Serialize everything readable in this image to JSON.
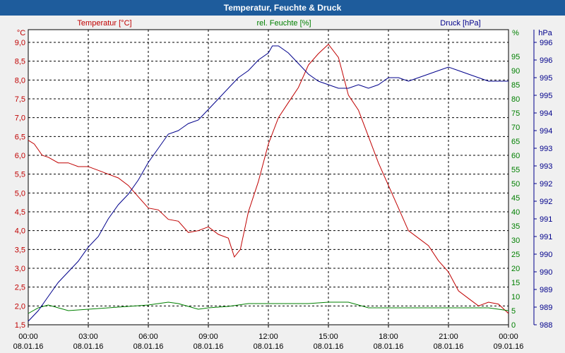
{
  "window": {
    "title": "Temperatur, Feuchte & Druck"
  },
  "chart_data": {
    "type": "line",
    "title": "Temperatur, Feuchte & Druck",
    "grid": true,
    "x_unit": "hours since 08.01.16 00:00",
    "xlim": [
      0,
      24
    ],
    "x_ticks": [
      {
        "x": 0,
        "time": "00:00",
        "date": "08.01.16"
      },
      {
        "x": 3,
        "time": "03:00",
        "date": "08.01.16"
      },
      {
        "x": 6,
        "time": "06:00",
        "date": "08.01.16"
      },
      {
        "x": 9,
        "time": "09:00",
        "date": "08.01.16"
      },
      {
        "x": 12,
        "time": "12:00",
        "date": "08.01.16"
      },
      {
        "x": 15,
        "time": "15:00",
        "date": "08.01.16"
      },
      {
        "x": 18,
        "time": "18:00",
        "date": "08.01.16"
      },
      {
        "x": 21,
        "time": "21:00",
        "date": "08.01.16"
      },
      {
        "x": 24,
        "time": "00:00",
        "date": "09.01.16"
      }
    ],
    "axes": {
      "temperature": {
        "label": "Temperatur [°C]",
        "unit": "°C",
        "color": "#c00000",
        "ylim": [
          1.5,
          9.0
        ],
        "ticks": [
          9.0,
          8.5,
          8.0,
          7.5,
          7.0,
          6.5,
          6.0,
          5.5,
          5.0,
          4.5,
          4.0,
          3.5,
          3.0,
          2.5,
          2.0,
          1.5
        ],
        "tick_labels": [
          "9,0",
          "8,5",
          "8,0",
          "7,5",
          "7,0",
          "6,5",
          "6,0",
          "5,5",
          "5,0",
          "4,5",
          "4,0",
          "3,5",
          "3,0",
          "2,5",
          "2,0",
          "1,5"
        ]
      },
      "humidity": {
        "label": "rel. Feuchte [%]",
        "unit": "%",
        "color": "#008000",
        "ylim": [
          0,
          100
        ],
        "ticks": [
          95,
          90,
          85,
          80,
          75,
          70,
          65,
          60,
          55,
          50,
          45,
          40,
          35,
          30,
          25,
          20,
          15,
          10,
          5,
          0
        ],
        "tick_labels": [
          "95",
          "90",
          "85",
          "80",
          "75",
          "70",
          "65",
          "60",
          "55",
          "50",
          "45",
          "40",
          "35",
          "30",
          "25",
          "20",
          "15",
          "10",
          "5",
          "0"
        ]
      },
      "pressure": {
        "label": "Druck [hPa]",
        "unit": "hPa",
        "color": "#00008b",
        "ylim": [
          988,
          996
        ],
        "ticks": [
          996,
          995.5,
          995,
          994.5,
          994,
          993.5,
          993,
          992.5,
          992,
          991.5,
          991,
          990.5,
          990,
          989.5,
          989,
          988.5,
          988
        ],
        "tick_labels": [
          "996",
          "996",
          "995",
          "995",
          "994",
          "994",
          "993",
          "993",
          "992",
          "992",
          "991",
          "991",
          "990",
          "990",
          "989",
          "989",
          "988"
        ]
      }
    },
    "series": [
      {
        "name": "Temperatur [°C]",
        "axis": "temperature",
        "x": [
          0,
          0.3,
          0.7,
          1,
          1.5,
          2,
          2.5,
          3,
          3.5,
          4,
          4.5,
          5,
          5.5,
          6,
          6.5,
          7,
          7.5,
          8,
          8.5,
          9,
          9.5,
          10,
          10.3,
          10.6,
          11,
          11.5,
          12,
          12.5,
          13,
          13.5,
          14,
          14.5,
          15,
          15.5,
          16,
          16.5,
          17,
          17.5,
          18,
          18.5,
          19,
          19.5,
          20,
          20.5,
          21,
          21.5,
          22,
          22.5,
          23,
          23.5,
          24
        ],
        "values": [
          6.4,
          6.3,
          6.0,
          5.95,
          5.8,
          5.8,
          5.7,
          5.7,
          5.6,
          5.5,
          5.4,
          5.2,
          4.9,
          4.6,
          4.55,
          4.3,
          4.25,
          3.95,
          4.0,
          4.1,
          3.9,
          3.8,
          3.3,
          3.5,
          4.5,
          5.3,
          6.3,
          7.0,
          7.4,
          7.8,
          8.4,
          8.7,
          8.95,
          8.6,
          7.6,
          7.2,
          6.5,
          5.8,
          5.2,
          4.6,
          4.0,
          3.8,
          3.6,
          3.2,
          2.9,
          2.4,
          2.2,
          2.0,
          2.1,
          2.05,
          1.8
        ]
      },
      {
        "name": "rel. Feuchte [%]",
        "axis": "humidity",
        "x": [
          0,
          0.5,
          1,
          1.5,
          2,
          3,
          4,
          5,
          6,
          6.5,
          7,
          7.5,
          8,
          8.5,
          9,
          10,
          10.5,
          11,
          12,
          14,
          15,
          16,
          16.5,
          17,
          18,
          20,
          22,
          23,
          24
        ],
        "values": [
          4,
          6,
          7,
          6,
          5,
          5.5,
          6,
          6.5,
          7,
          7.5,
          8,
          7.5,
          6.5,
          5.5,
          6,
          6.5,
          7,
          7.5,
          7.5,
          7.5,
          8,
          8,
          7,
          6,
          6,
          6,
          6,
          6,
          5
        ]
      },
      {
        "name": "Druck [hPa]",
        "axis": "pressure",
        "x": [
          0,
          0.5,
          1,
          1.5,
          2,
          2.5,
          3,
          3.5,
          4,
          4.5,
          5,
          5.5,
          6,
          6.5,
          7,
          7.5,
          8,
          8.5,
          9,
          9.5,
          10,
          10.5,
          11,
          11.5,
          12,
          12.2,
          12.5,
          13,
          13.5,
          14,
          14.5,
          15,
          15.5,
          16,
          16.5,
          17,
          17.5,
          18,
          18.5,
          19,
          19.5,
          20,
          20.5,
          21,
          21.5,
          22,
          22.5,
          23,
          23.5,
          24
        ],
        "values": [
          988.1,
          988.4,
          988.8,
          989.2,
          989.5,
          989.8,
          990.2,
          990.5,
          991.0,
          991.4,
          991.7,
          992.1,
          992.6,
          993.0,
          993.4,
          993.5,
          993.7,
          993.8,
          994.1,
          994.4,
          994.7,
          995.0,
          995.2,
          995.5,
          995.7,
          995.9,
          995.9,
          995.7,
          995.4,
          995.1,
          994.9,
          994.8,
          994.7,
          994.7,
          994.8,
          994.7,
          994.8,
          995.0,
          995.0,
          994.9,
          995.0,
          995.1,
          995.2,
          995.3,
          995.2,
          995.1,
          995.0,
          994.9,
          994.9,
          994.9
        ]
      }
    ]
  }
}
